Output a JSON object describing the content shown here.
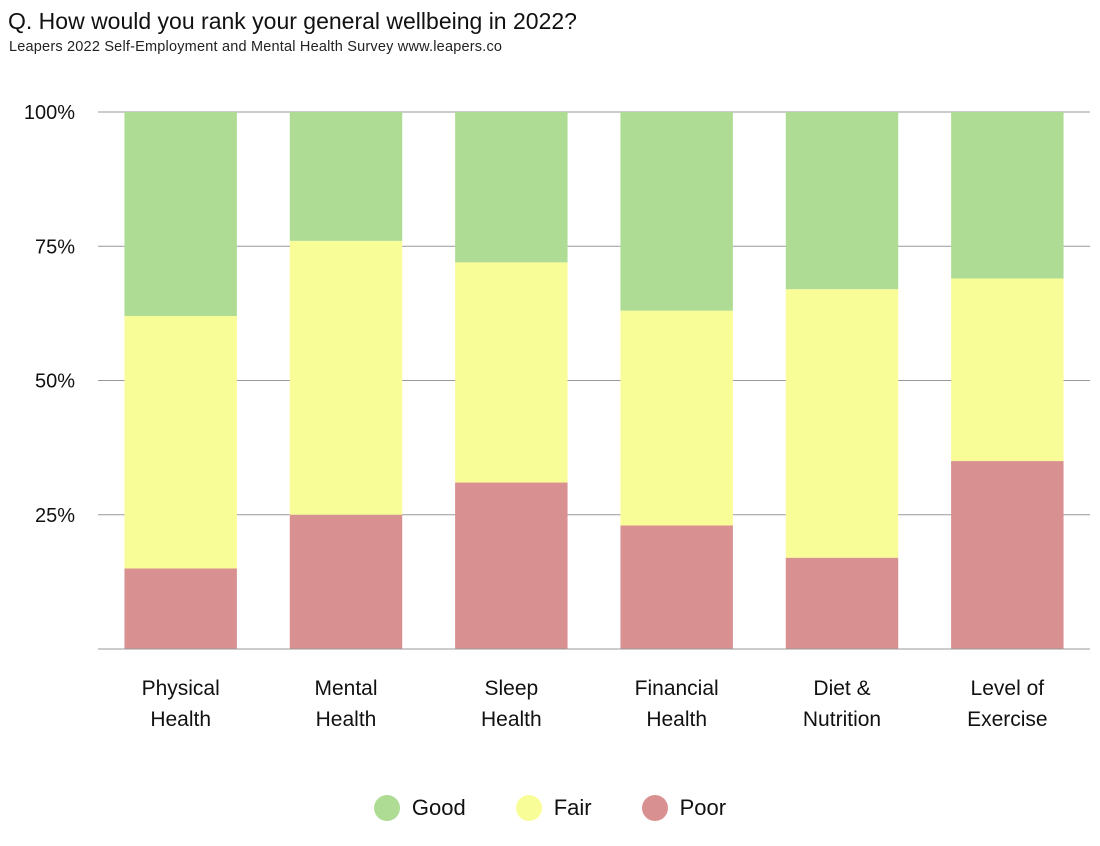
{
  "title": "Q. How would you rank your general wellbeing in 2022?",
  "subtitle": "Leapers 2022 Self-Employment and Mental Health Survey www.leapers.co",
  "colors": {
    "Good": "#afdc94",
    "Fair": "#f9fd98",
    "Poor": "#d99090",
    "grid": "#999999"
  },
  "chart_data": {
    "type": "bar",
    "stacked": true,
    "categories": [
      [
        "Physical",
        "Health"
      ],
      [
        "Mental",
        "Health"
      ],
      [
        "Sleep",
        "Health"
      ],
      [
        "Financial",
        "Health"
      ],
      [
        "Diet &",
        "Nutrition"
      ],
      [
        "Level of",
        "Exercise"
      ]
    ],
    "series": [
      {
        "name": "Poor",
        "values": [
          15,
          25,
          31,
          23,
          17,
          35
        ]
      },
      {
        "name": "Fair",
        "values": [
          47,
          51,
          41,
          40,
          50,
          34
        ]
      },
      {
        "name": "Good",
        "values": [
          38,
          24,
          28,
          37,
          33,
          31
        ]
      }
    ],
    "yticks": [
      "25%",
      "50%",
      "75%",
      "100%"
    ],
    "ytick_values": [
      25,
      50,
      75,
      100
    ],
    "ylim": [
      0,
      100
    ],
    "grid": true,
    "legend_position": "bottom",
    "legend": [
      "Good",
      "Fair",
      "Poor"
    ]
  }
}
